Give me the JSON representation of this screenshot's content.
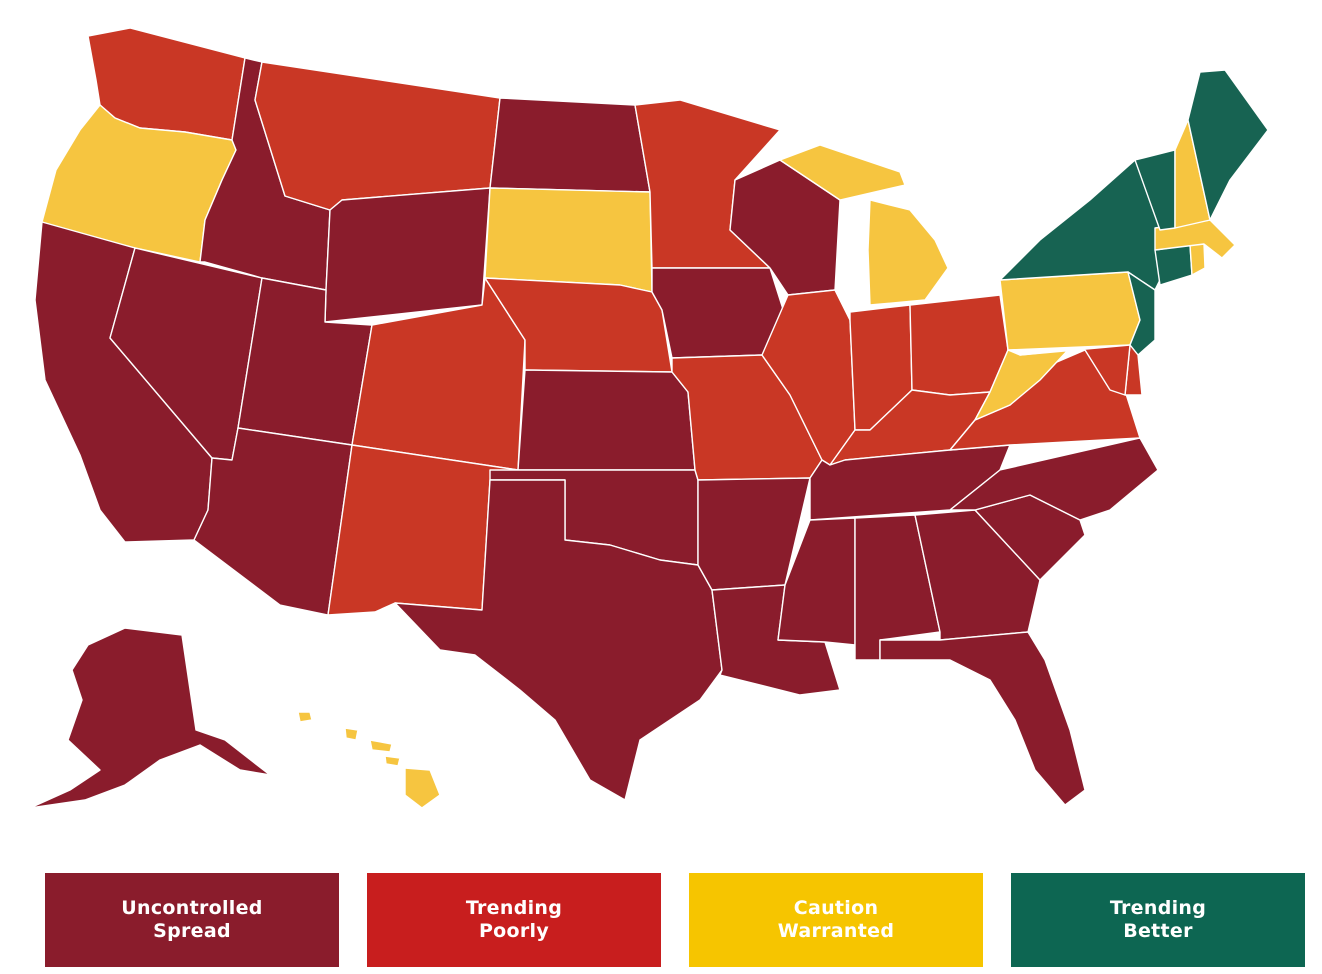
{
  "colors": {
    "uncontrolled": "#8a1c2c",
    "poorly": "#c93725",
    "caution": "#f6c540",
    "better": "#176352"
  },
  "legend": [
    {
      "key": "uncontrolled",
      "label": "Uncontrolled\nSpread",
      "color": "#8a1c2c"
    },
    {
      "key": "poorly",
      "label": "Trending\nPoorly",
      "color": "#c81e1e"
    },
    {
      "key": "caution",
      "label": "Caution\nWarranted",
      "color": "#f6c500"
    },
    {
      "key": "better",
      "label": "Trending\nBetter",
      "color": "#0d6652"
    }
  ],
  "states": {
    "WA": "poorly",
    "OR": "caution",
    "CA": "uncontrolled",
    "NV": "uncontrolled",
    "ID": "uncontrolled",
    "MT": "poorly",
    "WY": "uncontrolled",
    "UT": "uncontrolled",
    "AZ": "uncontrolled",
    "CO": "poorly",
    "NM": "poorly",
    "ND": "uncontrolled",
    "SD": "caution",
    "NE": "poorly",
    "KS": "uncontrolled",
    "OK": "uncontrolled",
    "TX": "uncontrolled",
    "MN": "poorly",
    "IA": "uncontrolled",
    "MO": "poorly",
    "AR": "uncontrolled",
    "LA": "uncontrolled",
    "WI": "uncontrolled",
    "IL": "poorly",
    "MI": "caution",
    "IN": "poorly",
    "OH": "poorly",
    "KY": "poorly",
    "TN": "uncontrolled",
    "MS": "uncontrolled",
    "AL": "uncontrolled",
    "GA": "uncontrolled",
    "FL": "uncontrolled",
    "SC": "uncontrolled",
    "NC": "uncontrolled",
    "VA": "poorly",
    "WV": "caution",
    "PA": "caution",
    "NY": "better",
    "NJ": "better",
    "DE": "poorly",
    "MD": "poorly",
    "CT": "better",
    "RI": "caution",
    "MA": "caution",
    "VT": "better",
    "NH": "caution",
    "ME": "better",
    "AK": "uncontrolled",
    "HI": "caution"
  }
}
